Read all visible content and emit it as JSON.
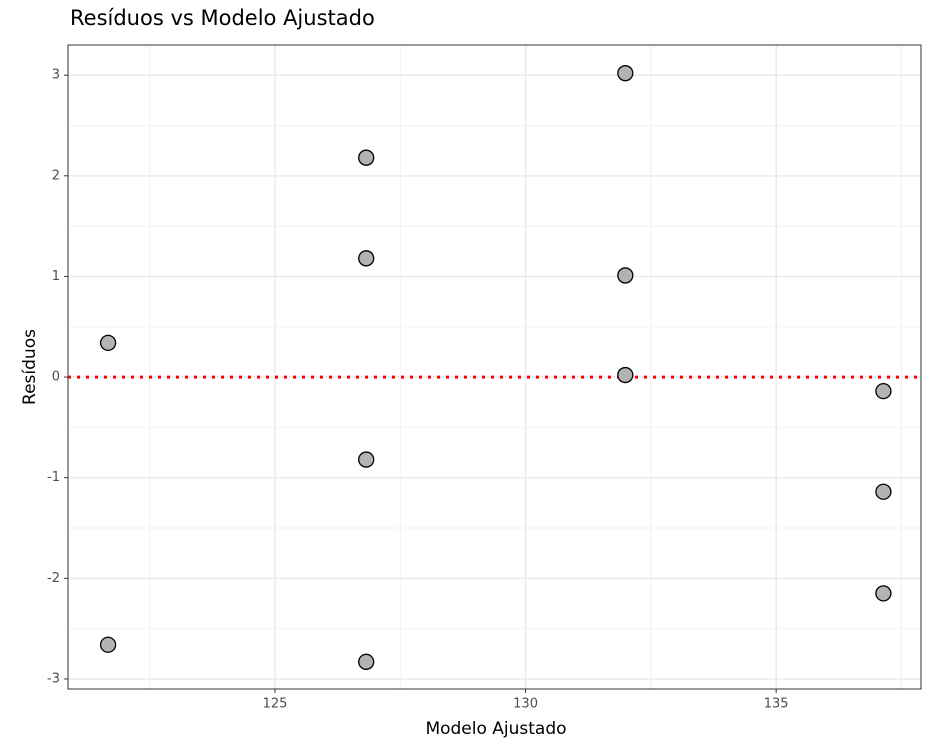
{
  "chart_data": {
    "type": "scatter",
    "title": "Resíduos  vs  Modelo Ajustado",
    "x_label": "Modelo Ajustado",
    "y_label": "Resíduos",
    "x": [
      121.67,
      121.67,
      126.82,
      126.82,
      126.82,
      126.82,
      131.99,
      131.99,
      131.99,
      137.14,
      137.14,
      137.14
    ],
    "values": [
      0.34,
      -2.66,
      2.18,
      1.18,
      -0.82,
      -2.83,
      3.02,
      1.01,
      0.02,
      -0.14,
      -1.14,
      -2.15
    ],
    "color": "#b3b3b3",
    "xlim": [
      120.87,
      137.89
    ],
    "ylim": [
      -3.1,
      3.3
    ],
    "xticks": [
      125,
      130,
      135
    ],
    "yticks": [
      -3,
      -2,
      -1,
      0,
      1,
      2,
      3
    ],
    "minor_xticks": [
      122.5,
      127.5,
      132.5,
      137.5
    ],
    "minor_yticks": [
      -2.5,
      -1.5,
      -0.5,
      0.5,
      1.5,
      2.5
    ],
    "hline": {
      "value": 0,
      "color": "#ff0000"
    },
    "grid": true
  }
}
